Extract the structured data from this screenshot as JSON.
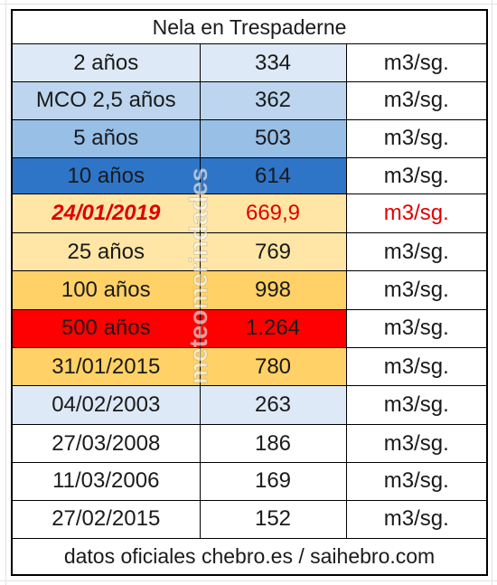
{
  "table": {
    "title": "Nela en Trespaderne",
    "footer": "datos oficiales chebro.es / saihebro.com",
    "rows": [
      {
        "label": "2 años",
        "value": "334",
        "unit": "m3/sg.",
        "fill": "#dde9f6",
        "style": "normal"
      },
      {
        "label": "MCO 2,5 años",
        "value": "362",
        "unit": "m3/sg.",
        "fill": "#bdd5ee",
        "style": "normal"
      },
      {
        "label": "5 años",
        "value": "503",
        "unit": "m3/sg.",
        "fill": "#98bfe6",
        "style": "normal"
      },
      {
        "label": "10 años",
        "value": "614",
        "unit": "m3/sg.",
        "fill": "#2e75c8",
        "style": "normal"
      },
      {
        "label": "24/01/2019",
        "value": "669,9",
        "unit": "m3/sg.",
        "fill": "#ffe6a6",
        "style": "highlight"
      },
      {
        "label": "25 años",
        "value": "769",
        "unit": "m3/sg.",
        "fill": "#ffe6a6",
        "style": "normal"
      },
      {
        "label": "100 años",
        "value": "998",
        "unit": "m3/sg.",
        "fill": "#ffd166",
        "style": "normal"
      },
      {
        "label": "500 años",
        "value": "1.264",
        "unit": "m3/sg.",
        "fill": "#ff0000",
        "style": "normal"
      },
      {
        "label": "31/01/2015",
        "value": "780",
        "unit": "m3/sg.",
        "fill": "#ffd166",
        "style": "normal"
      },
      {
        "label": "04/02/2003",
        "value": "263",
        "unit": "m3/sg.",
        "fill": "#dde9f6",
        "style": "normal"
      },
      {
        "label": "27/03/2008",
        "value": "186",
        "unit": "m3/sg.",
        "fill": "#ffffff",
        "style": "normal"
      },
      {
        "label": "11/03/2006",
        "value": "169",
        "unit": "m3/sg.",
        "fill": "#ffffff",
        "style": "normal"
      },
      {
        "label": "27/02/2015",
        "value": "152",
        "unit": "m3/sg.",
        "fill": "#ffffff",
        "style": "normal"
      }
    ]
  },
  "watermark": "meteomerindades"
}
